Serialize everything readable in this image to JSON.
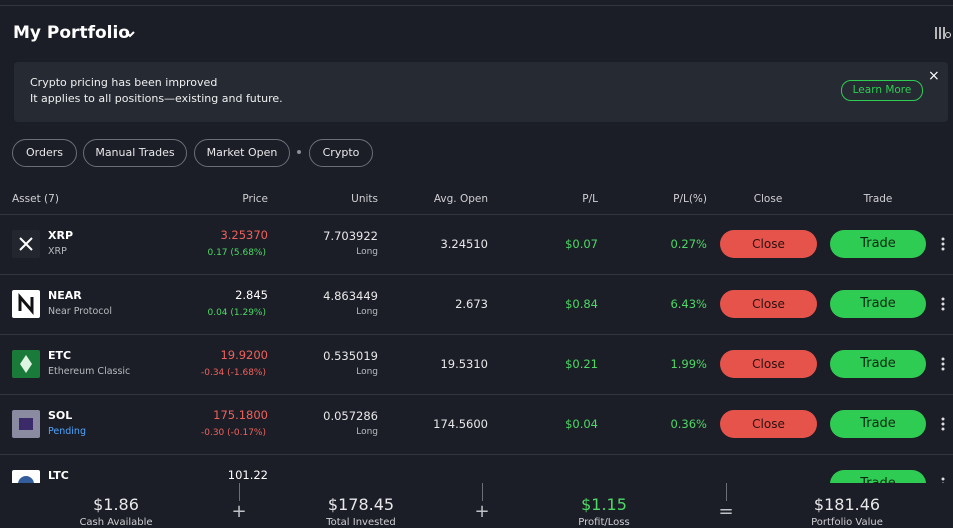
{
  "header": {
    "title": "My Portfolio"
  },
  "banner": {
    "line1": "Crypto pricing has been improved",
    "line2": "It applies to all positions—existing and future.",
    "button": "Learn More",
    "close": "×"
  },
  "filters": [
    "Orders",
    "Manual Trades",
    "Market Open",
    "Crypto"
  ],
  "columns": [
    "Asset (7)",
    "Price",
    "Units",
    "Avg. Open",
    "P/L",
    "P/L(%)",
    "Close",
    "Trade"
  ],
  "rows": [
    {
      "symbol": "XRP",
      "name": "XRP",
      "price": "3.25370",
      "price_color": "#f0605a",
      "change": "0.17 (5.68%)",
      "change_color": "#4cd964",
      "units": "7.703922",
      "side": "Long",
      "avg_open": "3.24510",
      "pl": "$0.07",
      "pl_pct": "0.27%",
      "close": "Close",
      "trade": "Trade"
    },
    {
      "symbol": "NEAR",
      "name": "Near Protocol",
      "price": "2.845",
      "price_color": "#ffffff",
      "change": "0.04 (1.29%)",
      "change_color": "#4cd964",
      "units": "4.863449",
      "side": "Long",
      "avg_open": "2.673",
      "pl": "$0.84",
      "pl_pct": "6.43%",
      "close": "Close",
      "trade": "Trade"
    },
    {
      "symbol": "ETC",
      "name": "Ethereum Classic",
      "price": "19.9200",
      "price_color": "#f0605a",
      "change": "-0.34 (-1.68%)",
      "change_color": "#f0605a",
      "units": "0.535019",
      "side": "Long",
      "avg_open": "19.5310",
      "pl": "$0.21",
      "pl_pct": "1.99%",
      "close": "Close",
      "trade": "Trade"
    },
    {
      "symbol": "SOL",
      "name": "Pending",
      "name_color": "#4da3ff",
      "price": "175.1800",
      "price_color": "#f0605a",
      "change": "-0.30 (-0.17%)",
      "change_color": "#f0605a",
      "units": "0.057286",
      "side": "Long",
      "avg_open": "174.5600",
      "pl": "$0.04",
      "pl_pct": "0.36%",
      "close": "Close",
      "trade": "Trade"
    },
    {
      "symbol": "LTC",
      "price": "101.22",
      "price_color": "#ffffff",
      "trade": "Trade"
    }
  ],
  "footer": [
    {
      "value": "$1.86",
      "label": "Cash Available"
    },
    {
      "value": "$178.45",
      "label": "Total Invested"
    },
    {
      "value": "$1.15",
      "label": "Profit/Loss",
      "color": "#4cd964"
    },
    {
      "value": "$181.46",
      "label": "Portfolio Value"
    }
  ],
  "operators": [
    "+",
    "+",
    "="
  ]
}
